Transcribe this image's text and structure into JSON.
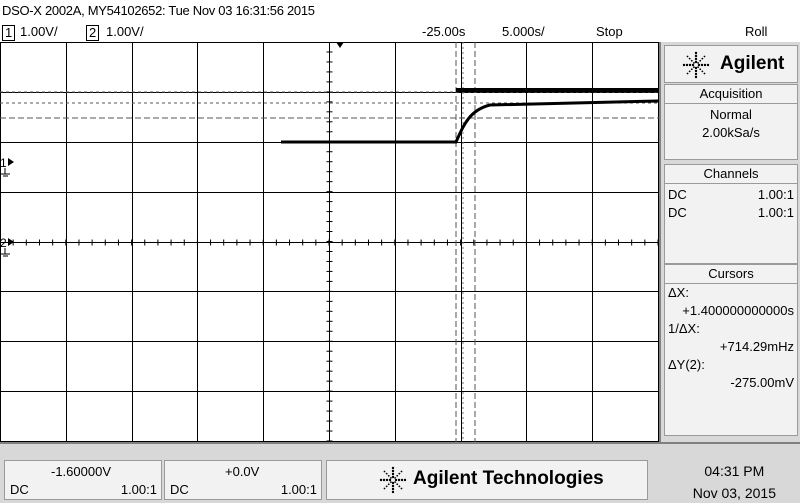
{
  "title": "DSO-X 2002A, MY54102652: Tue Nov 03 16:31:56 2015",
  "status": {
    "ch1_num": "1",
    "ch1_scale": "1.00V/",
    "ch2_num": "2",
    "ch2_scale": "1.00V/",
    "time_offset": "-25.00s",
    "time_scale": "5.000s/",
    "run_state": "Stop",
    "mode": "Roll"
  },
  "brand": {
    "name": "Agilent",
    "logo_icon": "spark-icon"
  },
  "acquisition": {
    "header": "Acquisition",
    "mode": "Normal",
    "rate": "2.00kSa/s"
  },
  "channels": {
    "header": "Channels",
    "rows": [
      {
        "coupling": "DC",
        "probe": "1.00:1"
      },
      {
        "coupling": "DC",
        "probe": "1.00:1"
      }
    ]
  },
  "cursors": {
    "header": "Cursors",
    "dx_label": "ΔX:",
    "dx_value": "+1.400000000000s",
    "inv_label": "1/ΔX:",
    "inv_value": "+714.29mHz",
    "dy_label": "ΔY(2):",
    "dy_value": "-275.00mV"
  },
  "markers": {
    "ch1": "1",
    "ch2": "2"
  },
  "bottom": {
    "ch1_offset": "-1.60000V",
    "ch1_coupling": "DC",
    "ch1_probe": "1.00:1",
    "ch2_offset": "+0.0V",
    "ch2_coupling": "DC",
    "ch2_probe": "1.00:1",
    "company": "Agilent Technologies",
    "time": "04:31 PM",
    "date": "Nov 03, 2015"
  },
  "colors": {
    "trace": "#000000",
    "grid": "#000000",
    "panel": "#f2f2f2",
    "frame": "#d8d8d8"
  }
}
